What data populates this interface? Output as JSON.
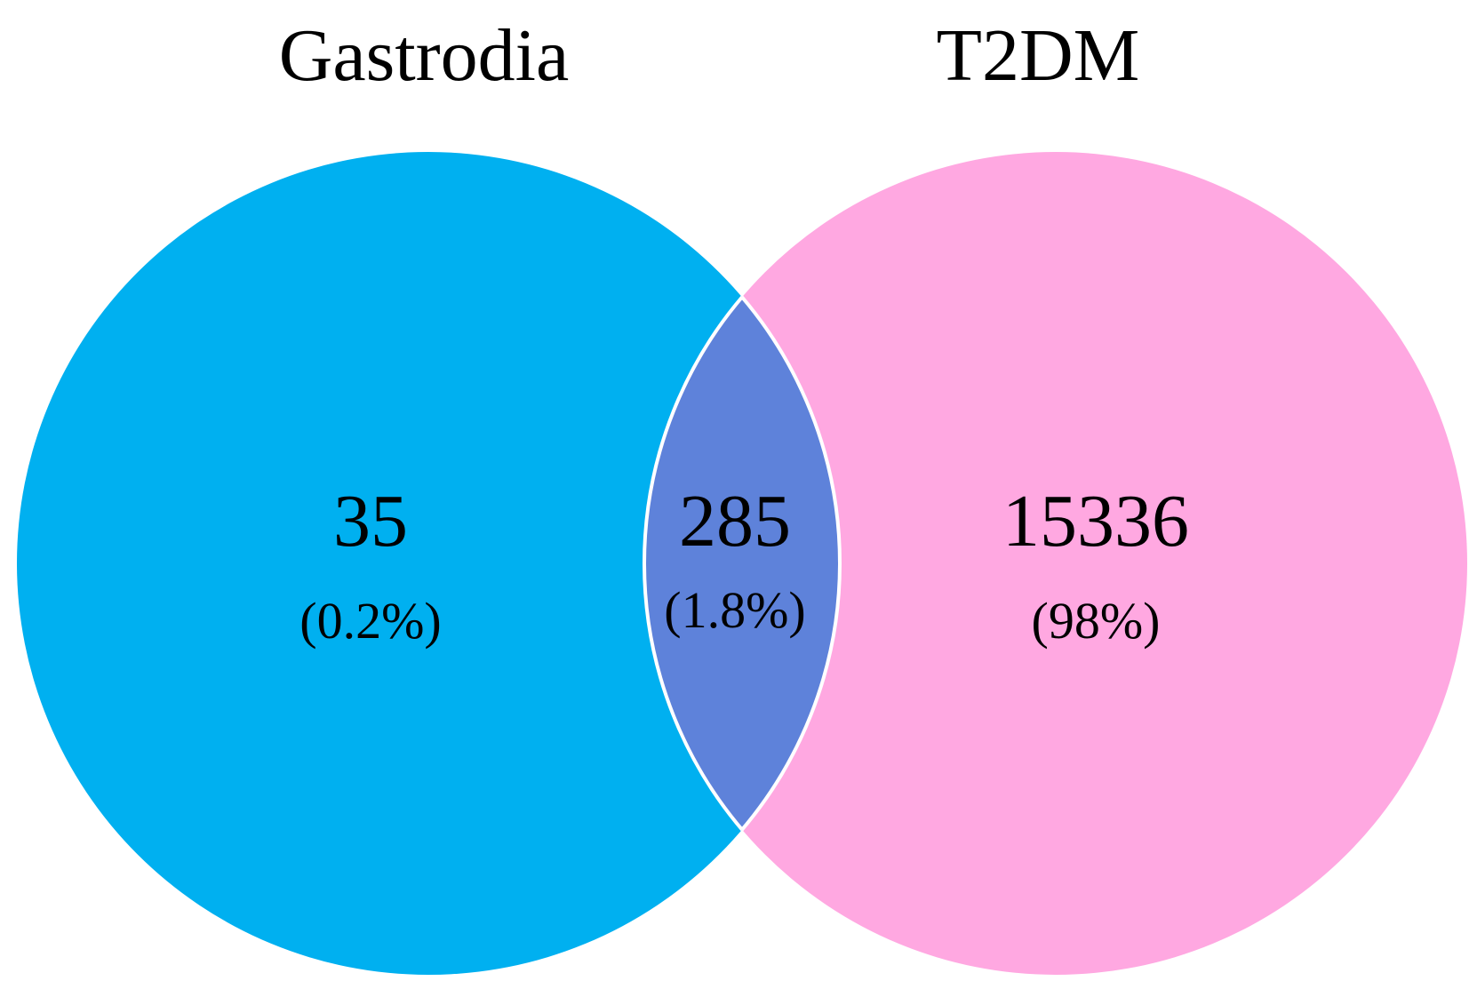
{
  "venn": {
    "sets": [
      {
        "id": "gastrodia",
        "label": "Gastrodia",
        "color": "#00B0F0"
      },
      {
        "id": "t2dm",
        "label": "T2DM",
        "color": "#FFA8E1"
      }
    ],
    "intersection_color": "#5E82DA",
    "outline_color": "#ffffff",
    "regions": {
      "gastrodia_only": {
        "count": "35",
        "percent": "(0.2%)"
      },
      "both": {
        "count": "285",
        "percent": "(1.8%)"
      },
      "t2dm_only": {
        "count": "15336",
        "percent": "(98%)"
      }
    }
  }
}
